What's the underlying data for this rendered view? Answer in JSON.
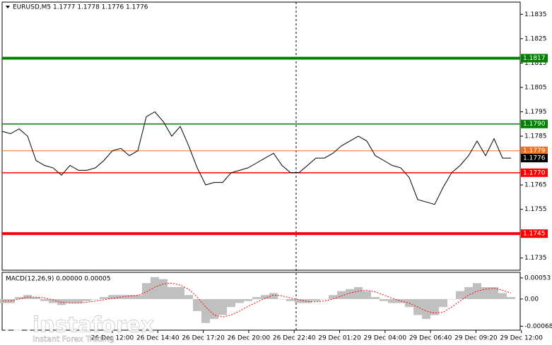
{
  "chart_data": [
    {
      "type": "line",
      "title": "EURUSD,M5  1.1777 1.1778 1.1776 1.1776",
      "series": [
        {
          "color": "#000000",
          "values": [
            1.1787,
            1.1786,
            1.1788,
            1.1785,
            1.1775,
            1.1773,
            1.1772,
            1.1769,
            1.1773,
            1.1771,
            1.1771,
            1.1772,
            1.1775,
            1.1779,
            1.178,
            1.1777,
            1.1779,
            1.1793,
            1.1795,
            1.1791,
            1.1785,
            1.1789,
            1.1781,
            1.1772,
            1.1765,
            1.1766,
            1.1766,
            1.177,
            1.1771,
            1.1772,
            1.1774,
            1.1776,
            1.1778,
            1.1773,
            1.177,
            1.177,
            1.1773,
            1.1776,
            1.1776,
            1.1778,
            1.1781,
            1.1783,
            1.1785,
            1.1783,
            1.1777,
            1.1775,
            1.1773,
            1.1772,
            1.1768,
            1.1759,
            1.1758,
            1.1757,
            1.1764,
            1.177,
            1.1773,
            1.1777,
            1.1783,
            1.1777,
            1.1784,
            1.1776,
            1.1776
          ]
        }
      ],
      "ylim": [
        1.173,
        1.184
      ],
      "yticks": [
        1.1835,
        1.1825,
        1.1815,
        1.1805,
        1.1795,
        1.1785,
        1.1765,
        1.1755,
        1.1735
      ],
      "levels": [
        {
          "value": 1.1817,
          "label": "1.1817",
          "color": "#008000",
          "width": 4
        },
        {
          "value": 1.179,
          "label": "1.1790",
          "color": "#008000",
          "width": 1.5
        },
        {
          "value": 1.1779,
          "label": "1.1779",
          "color": "#f07020",
          "width": 1
        },
        {
          "value": 1.177,
          "label": "1.1770",
          "color": "#ff0000",
          "width": 1.5
        },
        {
          "value": 1.1745,
          "label": "1.1745",
          "color": "#ff0000",
          "width": 4
        }
      ],
      "last_price": {
        "value": 1.1776,
        "label": "1.1776"
      }
    },
    {
      "type": "bar",
      "title": "MACD(12,26,9) 0.00000 0.00005",
      "series": [
        {
          "color": "#c0c0c0",
          "values": [
            -0.0001,
            -0.0001,
            5e-05,
            0.0001,
            5e-05,
            -5e-05,
            -0.0001,
            -0.00015,
            -0.0001,
            -0.0001,
            -5e-05,
            0,
            5e-05,
            0.0001,
            0.0001,
            0.0001,
            0.0001,
            0.0004,
            0.00055,
            0.0005,
            0.0003,
            0.0003,
            0.0001,
            -0.0003,
            -0.0006,
            -0.0005,
            -0.0004,
            -0.0002,
            -0.0001,
            -5e-05,
            5e-05,
            0.0001,
            0.00015,
            0,
            -5e-05,
            -0.0001,
            -0.0001,
            -5e-05,
            0,
            0.0001,
            0.0002,
            0.00025,
            0.0003,
            0.0002,
            5e-05,
            -5e-05,
            -0.0001,
            -0.0001,
            -0.0002,
            -0.0004,
            -0.0005,
            -0.0004,
            -0.0002,
            0,
            0.0002,
            0.0003,
            0.0004,
            0.0003,
            0.0003,
            0.00015,
            5e-05
          ]
        },
        {
          "color": "#ff0000",
          "type": "line",
          "values": [
            -5e-05,
            -5e-05,
            0,
            5e-05,
            5e-05,
            3e-05,
            -2e-05,
            -8e-05,
            -0.0001,
            -0.0001,
            -8e-05,
            -5e-05,
            -2e-05,
            2e-05,
            5e-05,
            8e-05,
            9e-05,
            0.00018,
            0.0003,
            0.00038,
            0.0004,
            0.00035,
            0.00025,
            5e-05,
            -0.0002,
            -0.0004,
            -0.00045,
            -0.0004,
            -0.0003,
            -0.00018,
            -8e-05,
            2e-05,
            0.0001,
            8e-05,
            3e-05,
            -2e-05,
            -6e-05,
            -7e-05,
            -5e-05,
            0,
            8e-05,
            0.00015,
            0.0002,
            0.00022,
            0.00018,
            0.0001,
            2e-05,
            -5e-05,
            -0.0001,
            -0.0002,
            -0.0003,
            -0.00035,
            -0.00033,
            -0.0002,
            -5e-05,
            0.0001,
            0.0002,
            0.00025,
            0.00027,
            0.00022,
            0.00015
          ]
        }
      ],
      "ylim": [
        -0.00078,
        0.00067
      ],
      "yticks": [
        0.00053,
        {
          "value": 0,
          "label": "0.00"
        },
        -0.00068
      ],
      "xtick_labels": [
        "26 Dec 12:00",
        "26 Dec 14:40",
        "26 Dec 17:20",
        "26 Dec 20:00",
        "26 Dec 22:40",
        "29 Dec 01:20",
        "29 Dec 04:00",
        "29 Dec 06:40",
        "29 Dec 09:20",
        "29 Dec 12:00"
      ]
    }
  ],
  "watermark": {
    "brand": "instaforex",
    "tagline": "Instant Forex Trading"
  }
}
